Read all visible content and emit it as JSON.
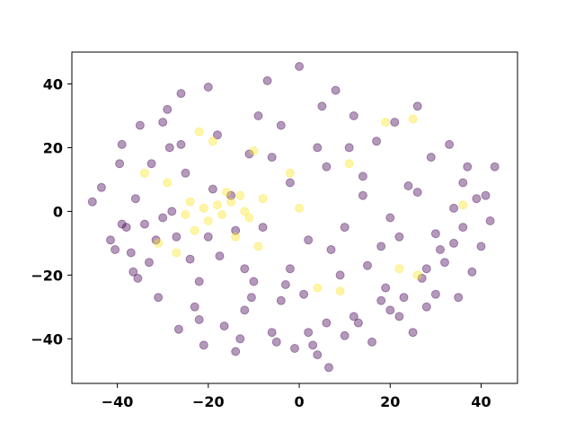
{
  "chart_data": {
    "type": "scatter",
    "title": "",
    "xlabel": "",
    "ylabel": "",
    "xlim": [
      -50,
      48
    ],
    "ylim": [
      -54,
      50
    ],
    "xticks": [
      -40,
      -20,
      0,
      20,
      40
    ],
    "yticks": [
      -40,
      -20,
      0,
      20,
      40
    ],
    "xtick_labels": [
      "−40",
      "−20",
      "0",
      "20",
      "40"
    ],
    "ytick_labels": [
      "−40",
      "−20",
      "0",
      "20",
      "40"
    ],
    "grid": false,
    "legend": "none",
    "point_alpha": 0.4,
    "series": [
      {
        "color": "#440154",
        "points": [
          [
            -45.5,
            3
          ],
          [
            -43.5,
            7.5
          ],
          [
            -41.5,
            -9
          ],
          [
            -40.5,
            -12
          ],
          [
            -39.5,
            15
          ],
          [
            -39,
            21
          ],
          [
            -39,
            -4
          ],
          [
            -38,
            -5
          ],
          [
            -37,
            -13
          ],
          [
            -36.5,
            -19
          ],
          [
            -35.5,
            -21
          ],
          [
            -35,
            27
          ],
          [
            -34,
            -4
          ],
          [
            -33,
            -16
          ],
          [
            -32.5,
            15
          ],
          [
            -31.5,
            -9
          ],
          [
            -31,
            -27
          ],
          [
            -30,
            28
          ],
          [
            -29,
            32
          ],
          [
            -28.5,
            20
          ],
          [
            -27,
            -8
          ],
          [
            -26.5,
            -37
          ],
          [
            -26,
            37
          ],
          [
            -25,
            12
          ],
          [
            -24,
            -15
          ],
          [
            -23,
            -30
          ],
          [
            -22,
            -34
          ],
          [
            -21,
            -42
          ],
          [
            -20,
            39
          ],
          [
            -19,
            7
          ],
          [
            -17.5,
            -14
          ],
          [
            -16.5,
            -36
          ],
          [
            -15,
            5
          ],
          [
            -14,
            -44
          ],
          [
            -13,
            -40
          ],
          [
            -12,
            -31
          ],
          [
            -11,
            18
          ],
          [
            -10.5,
            -27
          ],
          [
            -9,
            30
          ],
          [
            -8,
            -5
          ],
          [
            -7,
            41
          ],
          [
            -6,
            -38
          ],
          [
            -5,
            -41
          ],
          [
            -4,
            27
          ],
          [
            -3,
            -23
          ],
          [
            -2,
            -18
          ],
          [
            -1,
            -43
          ],
          [
            0,
            45.5
          ],
          [
            1,
            -26
          ],
          [
            2,
            -38
          ],
          [
            3,
            -42
          ],
          [
            4,
            -45
          ],
          [
            5,
            33
          ],
          [
            6,
            -35
          ],
          [
            6.5,
            -49
          ],
          [
            7,
            -12
          ],
          [
            8,
            38
          ],
          [
            9,
            -20
          ],
          [
            10,
            -39
          ],
          [
            11,
            20
          ],
          [
            12,
            -33
          ],
          [
            13,
            -35
          ],
          [
            14,
            5
          ],
          [
            15,
            -17
          ],
          [
            16,
            -41
          ],
          [
            17,
            22
          ],
          [
            18,
            -28
          ],
          [
            19,
            -24
          ],
          [
            20,
            -31
          ],
          [
            21,
            28
          ],
          [
            22,
            -33
          ],
          [
            23,
            -27
          ],
          [
            24,
            8
          ],
          [
            25,
            -38
          ],
          [
            26,
            33
          ],
          [
            27,
            -21
          ],
          [
            28,
            -30
          ],
          [
            29,
            17
          ],
          [
            30,
            -26
          ],
          [
            31,
            -12
          ],
          [
            32,
            -16
          ],
          [
            33,
            21
          ],
          [
            34,
            -10
          ],
          [
            35,
            -27
          ],
          [
            36,
            -5
          ],
          [
            37,
            14
          ],
          [
            38,
            -19
          ],
          [
            39,
            4
          ],
          [
            40,
            -11
          ],
          [
            41,
            5
          ],
          [
            42,
            -3
          ],
          [
            43,
            14
          ],
          [
            -36,
            4
          ],
          [
            -30,
            -2
          ],
          [
            -26,
            21
          ],
          [
            -22,
            -22
          ],
          [
            -18,
            24
          ],
          [
            -14,
            -6
          ],
          [
            -10,
            -22
          ],
          [
            -6,
            17
          ],
          [
            -2,
            9
          ],
          [
            2,
            -9
          ],
          [
            6,
            14
          ],
          [
            10,
            -5
          ],
          [
            14,
            11
          ],
          [
            18,
            -11
          ],
          [
            22,
            -8
          ],
          [
            26,
            6
          ],
          [
            30,
            -7
          ],
          [
            34,
            1
          ],
          [
            -28,
            0
          ],
          [
            -20,
            -8
          ],
          [
            -12,
            -18
          ],
          [
            -4,
            -28
          ],
          [
            4,
            20
          ],
          [
            12,
            30
          ],
          [
            20,
            -2
          ],
          [
            28,
            -18
          ],
          [
            36,
            9
          ]
        ]
      },
      {
        "color": "#fde725",
        "points": [
          [
            -34,
            12
          ],
          [
            -31,
            -10
          ],
          [
            -29,
            9
          ],
          [
            -27,
            -13
          ],
          [
            -25,
            -1
          ],
          [
            -24,
            3
          ],
          [
            -23,
            -6
          ],
          [
            -22,
            25
          ],
          [
            -21,
            1
          ],
          [
            -20,
            -3
          ],
          [
            -19,
            22
          ],
          [
            -18,
            2
          ],
          [
            -17,
            -1
          ],
          [
            -16,
            6
          ],
          [
            -15,
            3
          ],
          [
            -14,
            -8
          ],
          [
            -13,
            5
          ],
          [
            -12,
            0
          ],
          [
            -11,
            -2
          ],
          [
            -10,
            19
          ],
          [
            -9,
            -11
          ],
          [
            -8,
            4
          ],
          [
            -2,
            12
          ],
          [
            0,
            1
          ],
          [
            4,
            -24
          ],
          [
            9,
            -25
          ],
          [
            11,
            15
          ],
          [
            19,
            28
          ],
          [
            22,
            -18
          ],
          [
            25,
            29
          ],
          [
            26,
            -20
          ],
          [
            36,
            2
          ]
        ]
      }
    ]
  }
}
